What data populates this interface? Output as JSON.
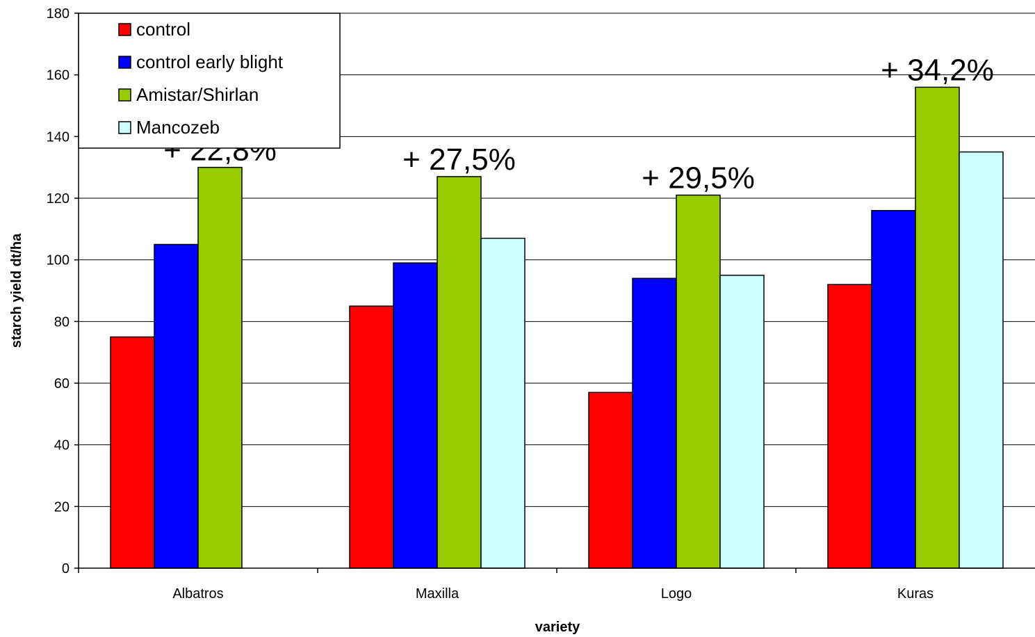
{
  "chart_data": {
    "type": "bar",
    "title": "",
    "xlabel": "variety",
    "ylabel": "starch yield dt/ha",
    "ylim": [
      0,
      180
    ],
    "yticks": [
      0,
      20,
      40,
      60,
      80,
      100,
      120,
      140,
      160,
      180
    ],
    "grid": true,
    "legend_position": "top-left",
    "categories": [
      "Albatros",
      "Maxilla",
      "Logo",
      "Kuras"
    ],
    "series": [
      {
        "name": "control",
        "color": "#ff0000",
        "values": [
          75,
          85,
          57,
          92
        ]
      },
      {
        "name": "control early blight",
        "color": "#0000ff",
        "values": [
          105,
          99,
          94,
          116
        ]
      },
      {
        "name": "Amistar/Shirlan",
        "color": "#99cc00",
        "values": [
          130,
          127,
          121,
          156
        ]
      },
      {
        "name": "Mancozeb",
        "color": "#ccffff",
        "values": [
          null,
          107,
          95,
          135
        ]
      }
    ],
    "annotations": [
      {
        "category": "Albatros",
        "text": "+ 22,8%"
      },
      {
        "category": "Maxilla",
        "text": "+ 27,5%"
      },
      {
        "category": "Logo",
        "text": "+ 29,5%"
      },
      {
        "category": "Kuras",
        "text": "+ 34,2%"
      }
    ]
  }
}
